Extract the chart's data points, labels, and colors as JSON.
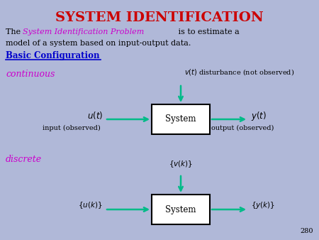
{
  "background_color": "#b0b8d8",
  "title": "SYSTEM IDENTIFICATION",
  "title_color": "#cc0000",
  "title_fontsize": 14,
  "highlight_color": "#cc00cc",
  "basic_config_color": "#0000cc",
  "continuous_label": "continuous",
  "discrete_label": "discrete",
  "label_color": "#cc00cc",
  "arrow_color": "#00bb88",
  "box_color": "#ffffff",
  "box_edge_color": "#000000",
  "text_color": "#000000",
  "page_number": "280",
  "body_fontsize": 8.0,
  "label_fontsize": 9.0,
  "diagram_fontsize": 8.5
}
